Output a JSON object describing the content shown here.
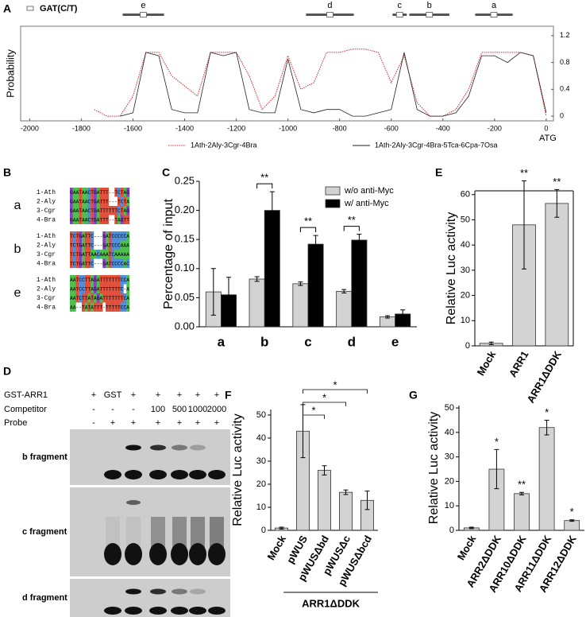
{
  "chart_data": [
    {
      "panel": "A",
      "type": "line",
      "ylabel": "Probability",
      "xlabel": "ATG",
      "site_label": "GAT(C/T)",
      "x": [
        -2000,
        -1950,
        -1900,
        -1850,
        -1800,
        -1750,
        -1700,
        -1650,
        -1600,
        -1550,
        -1500,
        -1450,
        -1400,
        -1350,
        -1300,
        -1250,
        -1200,
        -1150,
        -1100,
        -1050,
        -1000,
        -950,
        -900,
        -850,
        -800,
        -750,
        -700,
        -650,
        -600,
        -550,
        -500,
        -450,
        -400,
        -350,
        -300,
        -250,
        -200,
        -150,
        -100,
        -50,
        0
      ],
      "series": [
        {
          "name": "1Ath-2Aly-3Cgr-4Bra",
          "color": "#d62728",
          "style": "dotted",
          "values": [
            null,
            null,
            null,
            null,
            null,
            0.1,
            0,
            0,
            0.3,
            0.95,
            0.95,
            0.6,
            0.45,
            0.3,
            0.95,
            0.95,
            0.95,
            0.6,
            0.1,
            0.3,
            0.9,
            0.4,
            0.5,
            0.95,
            0.95,
            1.0,
            1.0,
            0.95,
            0.5,
            0.9,
            0.2,
            0,
            0,
            0.1,
            0.4,
            0.95,
            0.95,
            0.95,
            0.95,
            0.9,
            0
          ]
        },
        {
          "name": "1Ath-2Aly-3Cgr-4Bra-5Tca-6Cpa-7Osa",
          "color": "#222222",
          "style": "solid",
          "values": [
            null,
            null,
            null,
            null,
            null,
            null,
            null,
            0,
            0.05,
            0.95,
            0.9,
            0.1,
            0.05,
            0.05,
            0.95,
            0.9,
            0.95,
            0.1,
            0.05,
            0.05,
            0.85,
            0.1,
            0.05,
            0.1,
            0.1,
            0,
            0,
            0.05,
            0.1,
            0.95,
            0.1,
            0,
            0,
            0.05,
            0.3,
            0.9,
            0.9,
            0.8,
            0.95,
            0.9,
            0.05
          ]
        }
      ],
      "regions": [
        {
          "label": "e",
          "start": -1640,
          "end": -1480
        },
        {
          "label": "d",
          "start": -930,
          "end": -745
        },
        {
          "label": "c",
          "start": -595,
          "end": -540
        },
        {
          "label": "b",
          "start": -530,
          "end": -375
        },
        {
          "label": "a",
          "start": -275,
          "end": -130
        }
      ],
      "xlim": [
        -2035,
        28
      ],
      "ylim": [
        -0.07,
        1.34
      ],
      "xticks": [
        -2000,
        -1800,
        -1600,
        -1400,
        -1200,
        -1000,
        -800,
        -600,
        -400,
        -200,
        0
      ],
      "yticks": [
        0,
        0.4,
        0.8,
        1.2
      ],
      "y_axis_side": "right",
      "legend": "bottom"
    },
    {
      "panel": "C",
      "type": "bar",
      "ylabel": "Percentage of input",
      "categories": [
        "a",
        "b",
        "c",
        "d",
        "e"
      ],
      "series": [
        {
          "name": "w/o anti-Myc",
          "color": "#d3d3d3",
          "values": [
            0.06,
            0.082,
            0.074,
            0.061,
            0.017
          ],
          "errors": [
            0.04,
            0.004,
            0.003,
            0.003,
            0.002
          ]
        },
        {
          "name": "w/ anti-Myc",
          "color": "#000000",
          "values": [
            0.055,
            0.2,
            0.142,
            0.149,
            0.022
          ],
          "errors": [
            0.03,
            0.032,
            0.015,
            0.01,
            0.007
          ]
        }
      ],
      "significance": [
        null,
        "**",
        "**",
        "**",
        null
      ],
      "ylim": [
        0,
        0.25
      ],
      "yticks": [
        {
          "value": 0,
          "label": "0.00"
        },
        0.05,
        {
          "value": 0.1,
          "label": "0.10"
        },
        0.15,
        {
          "value": 0.2,
          "label": "0.20"
        },
        0.25
      ],
      "legend": "top-right"
    },
    {
      "panel": "E",
      "type": "bar",
      "ylabel": "Relative Luc activity",
      "categories": [
        "Mock",
        "ARR1",
        "ARR1ΔDDK"
      ],
      "color": "#d3d3d3",
      "values": [
        1,
        48,
        56.5
      ],
      "errors": [
        0.5,
        17.5,
        5.5
      ],
      "significance": [
        null,
        "**",
        "**"
      ],
      "ylim": [
        0,
        61.5
      ],
      "yticks": [
        0,
        10,
        20,
        30,
        40,
        50,
        60
      ],
      "frame": "box"
    },
    {
      "panel": "F",
      "type": "bar",
      "ylabel": "Relative Luc activity",
      "categories": [
        "Mock",
        "pWUS",
        "pWUSΔbd",
        "pWUSΔc",
        "pWUSΔbcd"
      ],
      "color": "#d3d3d3",
      "values": [
        1,
        43,
        26,
        16.5,
        13
      ],
      "errors": [
        0.4,
        11.5,
        2,
        1,
        4
      ],
      "comparisons": [
        {
          "ref": "pWUS",
          "target": "pWUSΔbd",
          "label": "*"
        },
        {
          "ref": "pWUS",
          "target": "pWUSΔc",
          "label": "*"
        },
        {
          "ref": "pWUS",
          "target": "pWUSΔbcd",
          "label": "*"
        }
      ],
      "group_label": "ARR1ΔDDK",
      "ylim": [
        0,
        52.4
      ],
      "yticks": [
        0,
        10,
        20,
        30,
        40,
        50
      ]
    },
    {
      "panel": "G",
      "type": "bar",
      "ylabel": "Relative Luc activity",
      "categories": [
        "Mock",
        "ARR2ΔDDK",
        "ARR10ΔDDK",
        "ARR11ΔDDK",
        "ARR12ΔDDK"
      ],
      "color": "#d3d3d3",
      "values": [
        1,
        25,
        15,
        42,
        4
      ],
      "errors": [
        0.3,
        8,
        0.5,
        3,
        0.3
      ],
      "significance": [
        null,
        "*",
        "**",
        "*",
        "*"
      ],
      "ylim": [
        0,
        51
      ],
      "yticks": [
        0,
        10,
        20,
        30,
        40,
        50
      ]
    }
  ],
  "alignment": {
    "panel": "B",
    "groups": [
      {
        "label": "a",
        "rows": [
          {
            "name": "1-Ath",
            "sequence": "GAATAACTGATTT--TCTAG"
          },
          {
            "name": "2-Aly",
            "sequence": "GAATAACTGATTT---TCTA"
          },
          {
            "name": "3-Cgr",
            "sequence": "GAATAACTGATTTTTTCTAG"
          },
          {
            "name": "4-Bra",
            "sequence": "GAATAACTGATTT--TAGTT"
          }
        ]
      },
      {
        "label": "b",
        "rows": [
          {
            "name": "1-Ath",
            "sequence": "TCTGATTC---GATCCCCCA"
          },
          {
            "name": "2-Aly",
            "sequence": "TCTGATTC---GATCCCAAA"
          },
          {
            "name": "3-Cgr",
            "sequence": "TCTGATTAACAAATCAAAAA"
          },
          {
            "name": "4-Bra",
            "sequence": "TCTGATTC---GATCCCCAC"
          }
        ]
      },
      {
        "label": "e",
        "rows": [
          {
            "name": "1-Ath",
            "sequence": "AATCCTTAGATTTTTTTCCA"
          },
          {
            "name": "2-Aly",
            "sequence": "AATCCTTAGATTTTTTTC-A"
          },
          {
            "name": "3-Cgr",
            "sequence": "AATCTTATAGATTTTTTTCA"
          },
          {
            "name": "4-Bra",
            "sequence": "AA--TATATTT-TTTTTCCA"
          }
        ]
      }
    ]
  },
  "emsa": {
    "panel": "D",
    "rows": [
      {
        "label": "GST-ARR1",
        "cells": [
          "+",
          "GST",
          "+",
          "+",
          "+",
          "+",
          "+"
        ]
      },
      {
        "label": "Competitor",
        "cells": [
          "-",
          "-",
          "-",
          "100",
          "500",
          "1000",
          "2000"
        ]
      },
      {
        "label": "Probe",
        "cells": [
          "-",
          "+",
          "+",
          "+",
          "+",
          "+",
          "+"
        ]
      }
    ],
    "gels": [
      "b fragment",
      "c fragment",
      "d fragment"
    ]
  }
}
